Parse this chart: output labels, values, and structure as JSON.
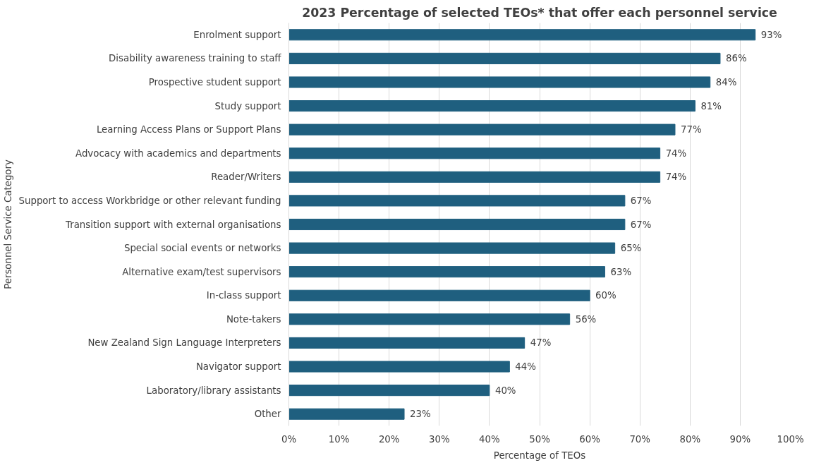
{
  "chart_data": {
    "type": "bar",
    "orientation": "horizontal",
    "title": "2023 Percentage of selected TEOs* that offer each personnel service",
    "xlabel": "Percentage of TEOs",
    "ylabel": "Personnel Service Category",
    "categories": [
      "Enrolment support",
      "Disability awareness training to staff",
      "Prospective student support",
      "Study support",
      "Learning Access Plans or Support Plans",
      "Advocacy with academics and departments",
      "Reader/Writers",
      "Support to access Workbridge or other relevant funding",
      "Transition support with external organisations",
      "Special social events or networks",
      "Alternative exam/test supervisors",
      "In-class support",
      "Note-takers",
      "New Zealand Sign Language Interpreters",
      "Navigator support",
      "Laboratory/library assistants",
      "Other"
    ],
    "values": [
      93,
      86,
      84,
      81,
      77,
      74,
      74,
      67,
      67,
      65,
      63,
      60,
      56,
      47,
      44,
      40,
      23
    ],
    "value_labels": [
      "93%",
      "86%",
      "84%",
      "81%",
      "77%",
      "74%",
      "74%",
      "67%",
      "67%",
      "65%",
      "63%",
      "60%",
      "56%",
      "47%",
      "44%",
      "40%",
      "23%"
    ],
    "color": "#1f5f7f",
    "xlim": [
      0,
      100
    ],
    "xticks": [
      {
        "value": 0,
        "label": "0%"
      },
      {
        "value": 10,
        "label": "10%"
      },
      {
        "value": 20,
        "label": "20%"
      },
      {
        "value": 30,
        "label": "30%"
      },
      {
        "value": 40,
        "label": "40%"
      },
      {
        "value": 50,
        "label": "50%"
      },
      {
        "value": 60,
        "label": "60%"
      },
      {
        "value": 70,
        "label": "70%"
      },
      {
        "value": 80,
        "label": "80%"
      },
      {
        "value": 90,
        "label": "90%"
      },
      {
        "value": 100,
        "label": "100%"
      }
    ],
    "grid": "x"
  }
}
